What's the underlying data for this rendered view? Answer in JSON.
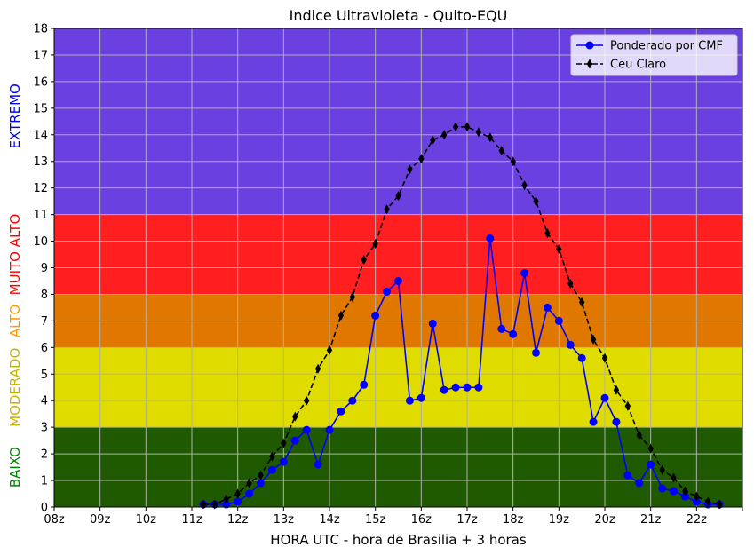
{
  "chart_data": {
    "type": "line",
    "title": "Indice Ultravioleta - Quito-EQU",
    "xlabel": "HORA UTC - hora de Brasilia + 3 horas",
    "ylabel": "",
    "xlim": [
      8,
      23
    ],
    "ylim": [
      0,
      18
    ],
    "grid": true,
    "legend_position": "top-right",
    "x_tick_labels": [
      "08z",
      "09z",
      "10z",
      "11z",
      "12z",
      "13z",
      "14z",
      "15z",
      "16z",
      "17z",
      "18z",
      "19z",
      "20z",
      "21z",
      "22z",
      ""
    ],
    "y_ticks": [
      0,
      1,
      2,
      3,
      4,
      5,
      6,
      7,
      8,
      9,
      10,
      11,
      12,
      13,
      14,
      15,
      16,
      17,
      18
    ],
    "bands": [
      {
        "label": "BAIXO",
        "from": 0,
        "to": 3,
        "color": "#1f5a00",
        "label_color": "#008000"
      },
      {
        "label": "MODERADO",
        "from": 3,
        "to": 6,
        "color": "#e0dc00",
        "label_color": "#c8b400"
      },
      {
        "label": "ALTO",
        "from": 6,
        "to": 8,
        "color": "#e07800",
        "label_color": "#ff9900"
      },
      {
        "label": "MUITO ALTO",
        "from": 8,
        "to": 11,
        "color": "#ff1f20",
        "label_color": "#ff0000"
      },
      {
        "label": "EXTREMO",
        "from": 11,
        "to": 18,
        "color": "#6a40e0",
        "label_color": "#0000ff"
      }
    ],
    "series": [
      {
        "name": "Ponderado por CMF",
        "color": "#0000ff",
        "marker": "circle",
        "line_style": "solid",
        "x": [
          11.25,
          11.5,
          11.75,
          12.0,
          12.25,
          12.5,
          12.75,
          13.0,
          13.25,
          13.5,
          13.75,
          14.0,
          14.25,
          14.5,
          14.75,
          15.0,
          15.25,
          15.5,
          15.75,
          16.0,
          16.25,
          16.5,
          16.75,
          17.0,
          17.25,
          17.5,
          17.75,
          18.0,
          18.25,
          18.5,
          18.75,
          19.0,
          19.25,
          19.5,
          19.75,
          20.0,
          20.25,
          20.5,
          20.75,
          21.0,
          21.25,
          21.5,
          21.75,
          22.0,
          22.25,
          22.5
        ],
        "values": [
          0.1,
          0.1,
          0.1,
          0.2,
          0.5,
          0.9,
          1.4,
          1.7,
          2.5,
          2.9,
          1.6,
          2.9,
          3.6,
          4.0,
          4.6,
          7.2,
          8.1,
          8.5,
          4.0,
          4.1,
          6.9,
          4.4,
          4.5,
          4.5,
          4.5,
          10.1,
          6.7,
          6.5,
          8.8,
          5.8,
          7.5,
          7.0,
          6.1,
          5.6,
          3.2,
          4.1,
          3.2,
          1.2,
          0.9,
          1.6,
          0.7,
          0.6,
          0.4,
          0.2,
          0.1,
          0.1
        ]
      },
      {
        "name": "Ceu Claro",
        "color": "#000000",
        "marker": "diamond",
        "line_style": "dashed",
        "x": [
          11.25,
          11.5,
          11.75,
          12.0,
          12.25,
          12.5,
          12.75,
          13.0,
          13.25,
          13.5,
          13.75,
          14.0,
          14.25,
          14.5,
          14.75,
          15.0,
          15.25,
          15.5,
          15.75,
          16.0,
          16.25,
          16.5,
          16.75,
          17.0,
          17.25,
          17.5,
          17.75,
          18.0,
          18.25,
          18.5,
          18.75,
          19.0,
          19.25,
          19.5,
          19.75,
          20.0,
          20.25,
          20.5,
          20.75,
          21.0,
          21.25,
          21.5,
          21.75,
          22.0,
          22.25,
          22.5
        ],
        "values": [
          0.1,
          0.1,
          0.3,
          0.5,
          0.9,
          1.2,
          1.9,
          2.4,
          3.4,
          4.0,
          5.2,
          5.9,
          7.2,
          7.9,
          9.3,
          9.9,
          11.2,
          11.7,
          12.7,
          13.1,
          13.8,
          14.0,
          14.3,
          14.3,
          14.1,
          13.9,
          13.4,
          13.0,
          12.1,
          11.5,
          10.3,
          9.7,
          8.4,
          7.7,
          6.3,
          5.6,
          4.4,
          3.8,
          2.7,
          2.2,
          1.4,
          1.1,
          0.6,
          0.4,
          0.2,
          0.1
        ]
      }
    ]
  }
}
